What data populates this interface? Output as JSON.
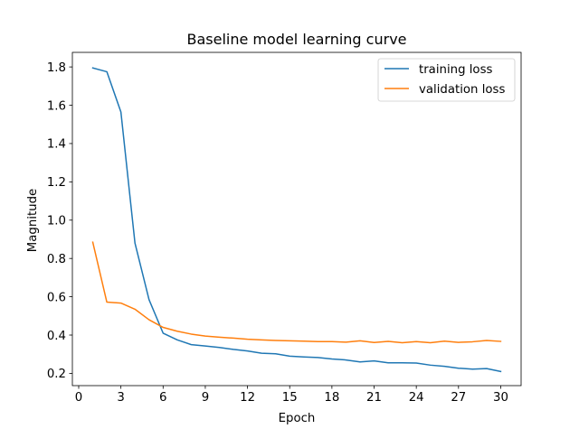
{
  "chart_data": {
    "type": "line",
    "title": "Baseline model learning curve",
    "xlabel": "Epoch",
    "ylabel": "Magnitude",
    "xlim": [
      -0.45,
      31.45
    ],
    "ylim": [
      0.136,
      1.876
    ],
    "xticks": [
      0,
      3,
      6,
      9,
      12,
      15,
      18,
      21,
      24,
      27,
      30
    ],
    "yticks": [
      0.2,
      0.4,
      0.6,
      0.8,
      1.0,
      1.2,
      1.4,
      1.6,
      1.8
    ],
    "xtick_labels": [
      "0",
      "3",
      "6",
      "9",
      "12",
      "15",
      "18",
      "21",
      "24",
      "27",
      "30"
    ],
    "ytick_labels": [
      "0.2",
      "0.4",
      "0.6",
      "0.8",
      "1.0",
      "1.2",
      "1.4",
      "1.6",
      "1.8"
    ],
    "grid": false,
    "legend_position": "top-right",
    "x": [
      1,
      2,
      3,
      4,
      5,
      6,
      7,
      8,
      9,
      10,
      11,
      12,
      13,
      14,
      15,
      16,
      17,
      18,
      19,
      20,
      21,
      22,
      23,
      24,
      25,
      26,
      27,
      28,
      29,
      30
    ],
    "series": [
      {
        "name": "training loss",
        "color": "#1f77b4",
        "values": [
          1.795,
          1.775,
          1.565,
          0.88,
          0.585,
          0.41,
          0.375,
          0.35,
          0.343,
          0.335,
          0.325,
          0.317,
          0.305,
          0.302,
          0.29,
          0.286,
          0.283,
          0.275,
          0.27,
          0.26,
          0.265,
          0.255,
          0.255,
          0.254,
          0.243,
          0.237,
          0.227,
          0.222,
          0.225,
          0.21
        ]
      },
      {
        "name": "validation loss",
        "color": "#ff7f0e",
        "values": [
          0.885,
          0.572,
          0.567,
          0.535,
          0.48,
          0.44,
          0.42,
          0.405,
          0.395,
          0.389,
          0.384,
          0.378,
          0.375,
          0.372,
          0.37,
          0.368,
          0.366,
          0.366,
          0.363,
          0.37,
          0.361,
          0.367,
          0.36,
          0.366,
          0.36,
          0.368,
          0.362,
          0.365,
          0.372,
          0.367
        ]
      }
    ]
  }
}
